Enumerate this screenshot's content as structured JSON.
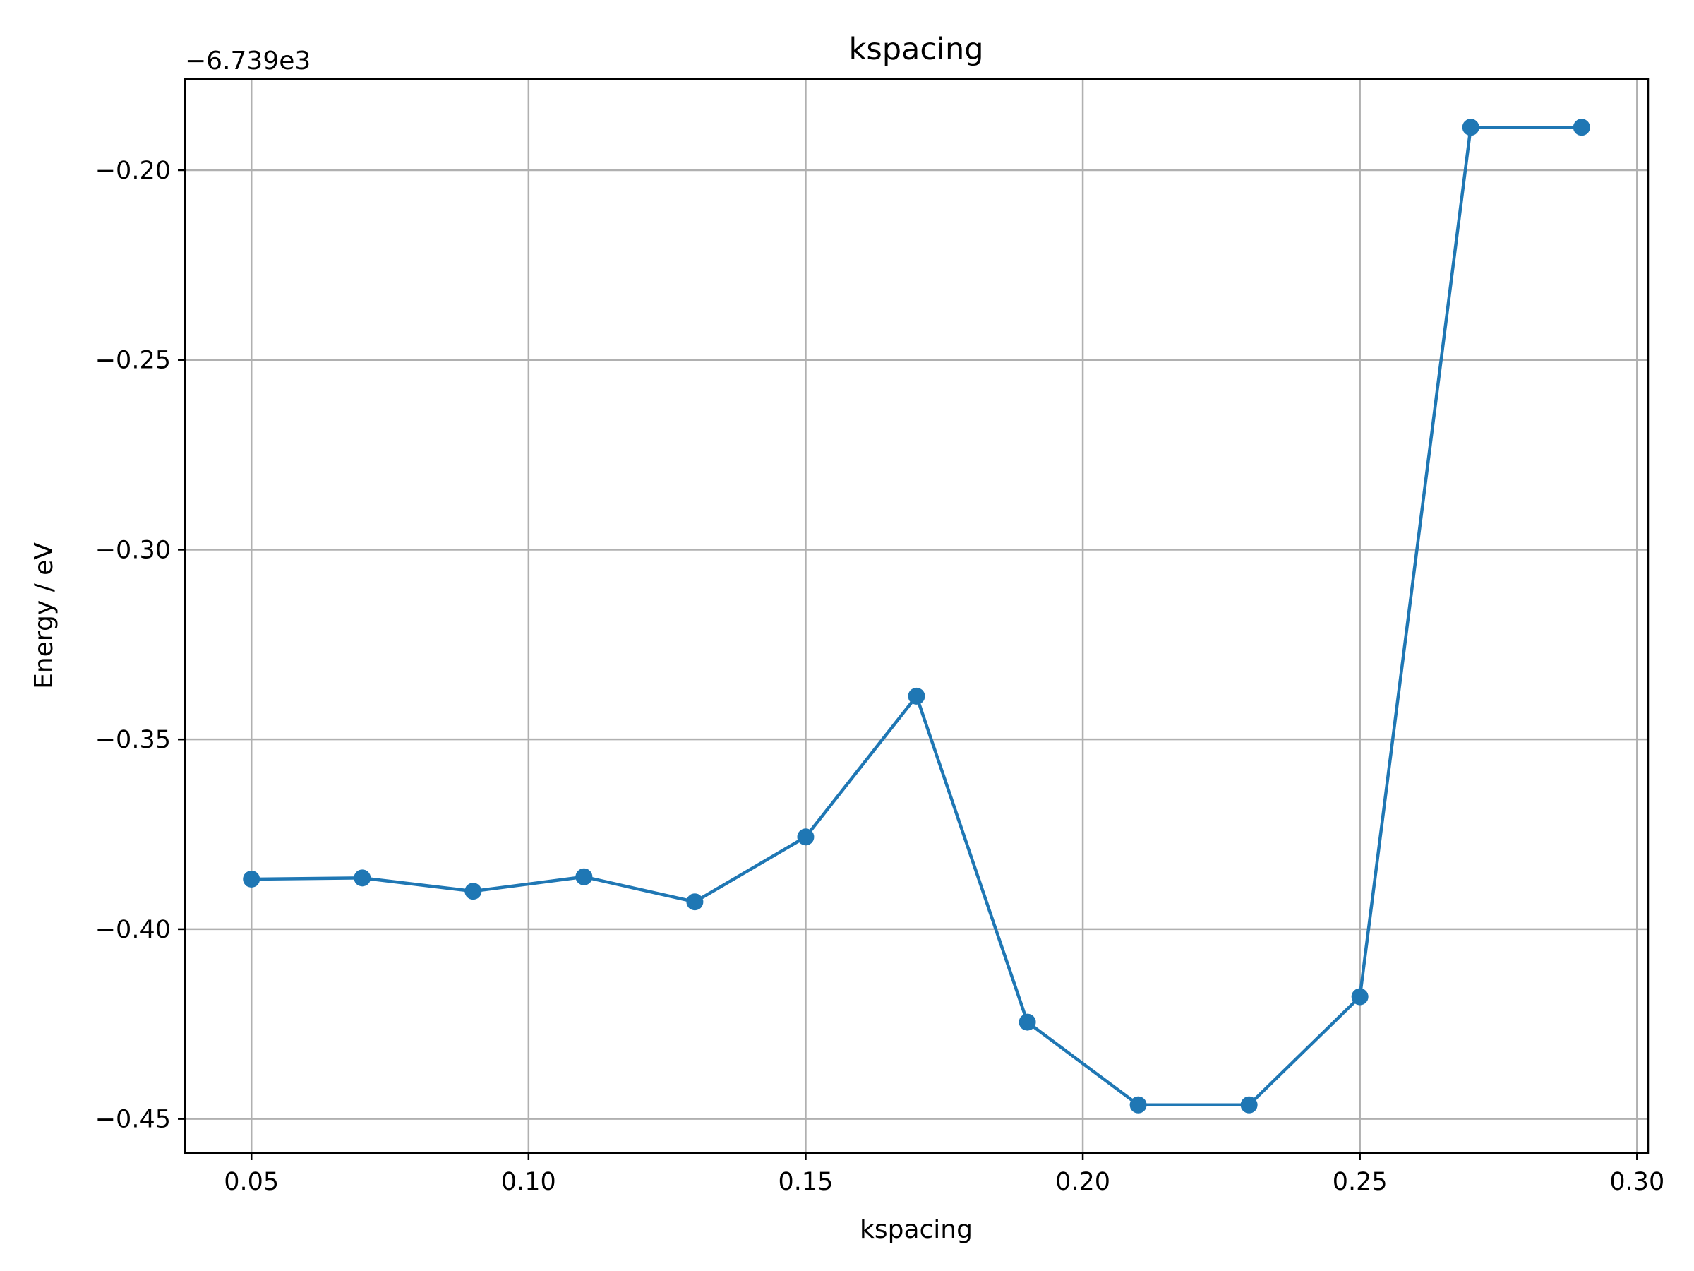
{
  "chart_data": {
    "type": "line",
    "title": "kspacing",
    "xlabel": "kspacing",
    "ylabel": "Energy / eV",
    "y_offset_text": "−6.739e3",
    "x_ticks": [
      "0.05",
      "0.10",
      "0.15",
      "0.20",
      "0.25",
      "0.30"
    ],
    "y_ticks": [
      "−0.45",
      "−0.40",
      "−0.35",
      "−0.30",
      "−0.25",
      "−0.20"
    ],
    "xlim": [
      0.038,
      0.302
    ],
    "ylim": [
      -0.459,
      -0.176
    ],
    "grid": true,
    "marker": "circle",
    "color": "#1f77b4",
    "series": [
      {
        "x": [
          0.05,
          0.07,
          0.09,
          0.11,
          0.13,
          0.15,
          0.17,
          0.19,
          0.21,
          0.23,
          0.25,
          0.27,
          0.29
        ],
        "y": [
          -0.3868,
          -0.3865,
          -0.39,
          -0.3862,
          -0.3928,
          -0.3757,
          -0.3386,
          -0.4245,
          -0.4463,
          -0.4463,
          -0.4178,
          -0.1887,
          -0.1887
        ]
      }
    ]
  }
}
